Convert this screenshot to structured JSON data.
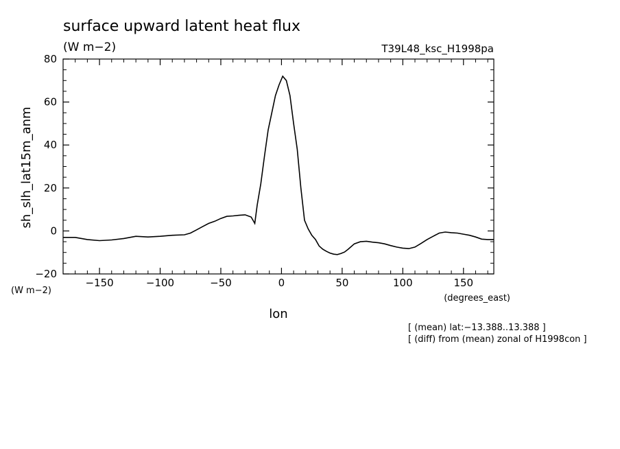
{
  "chart_data": {
    "type": "line",
    "title": "surface upward latent heat flux",
    "units": "(W m−2)",
    "run_label": "T39L48_ksc_H1998pa",
    "ylabel": "sh_slh_lat15m_anm",
    "yunits": "(W m−2)",
    "xlabel": "lon",
    "xunits": "(degrees_east)",
    "notes": [
      "[ (mean) lat:−13.388..13.388 ]",
      "[ (diff) from (mean) zonal of H1998con ]"
    ],
    "xlim": [
      -180,
      175
    ],
    "ylim": [
      -20,
      80
    ],
    "xticks": [
      -150,
      -100,
      -50,
      0,
      50,
      100,
      150
    ],
    "xtick_labels": [
      "−150",
      "−100",
      "−50",
      "0",
      "50",
      "100",
      "150"
    ],
    "yticks": [
      -20,
      0,
      20,
      40,
      60,
      80
    ],
    "ytick_labels": [
      "−20",
      "0",
      "20",
      "40",
      "60",
      "80"
    ],
    "grid": false,
    "series": [
      {
        "x": [
          -180,
          -170,
          -160,
          -150,
          -140,
          -130,
          -120,
          -110,
          -100,
          -90,
          -80,
          -75,
          -70,
          -65,
          -60,
          -55,
          -50,
          -45,
          -40,
          -35,
          -30,
          -25,
          -22,
          -20,
          -17,
          -14,
          -11,
          -8,
          -5,
          -2,
          1,
          4,
          7,
          10,
          13,
          16,
          19,
          22,
          25,
          28,
          31,
          34,
          37,
          40,
          43,
          46,
          49,
          52,
          55,
          60,
          65,
          70,
          75,
          80,
          85,
          90,
          95,
          100,
          105,
          110,
          115,
          120,
          125,
          130,
          135,
          140,
          145,
          150,
          155,
          160,
          165,
          170,
          175
        ],
        "y": [
          -3,
          -3,
          -4,
          -4.5,
          -4.2,
          -3.5,
          -2.5,
          -2.8,
          -2.5,
          -2,
          -1.8,
          -1,
          0.5,
          2,
          3.5,
          4.5,
          5.8,
          6.8,
          7,
          7.3,
          7.5,
          6.5,
          3.5,
          12,
          22,
          35,
          47,
          55,
          63,
          68,
          72,
          70,
          63,
          50,
          38,
          20,
          5,
          1,
          -2,
          -4,
          -7,
          -8.5,
          -9.5,
          -10.3,
          -10.8,
          -11,
          -10.5,
          -9.8,
          -8.5,
          -6,
          -5,
          -4.8,
          -5.2,
          -5.5,
          -6,
          -6.8,
          -7.5,
          -8,
          -8.2,
          -7.5,
          -5.8,
          -4,
          -2.5,
          -1,
          -0.5,
          -0.8,
          -1,
          -1.5,
          -2,
          -2.8,
          -3.8,
          -4,
          -4
        ]
      }
    ]
  }
}
